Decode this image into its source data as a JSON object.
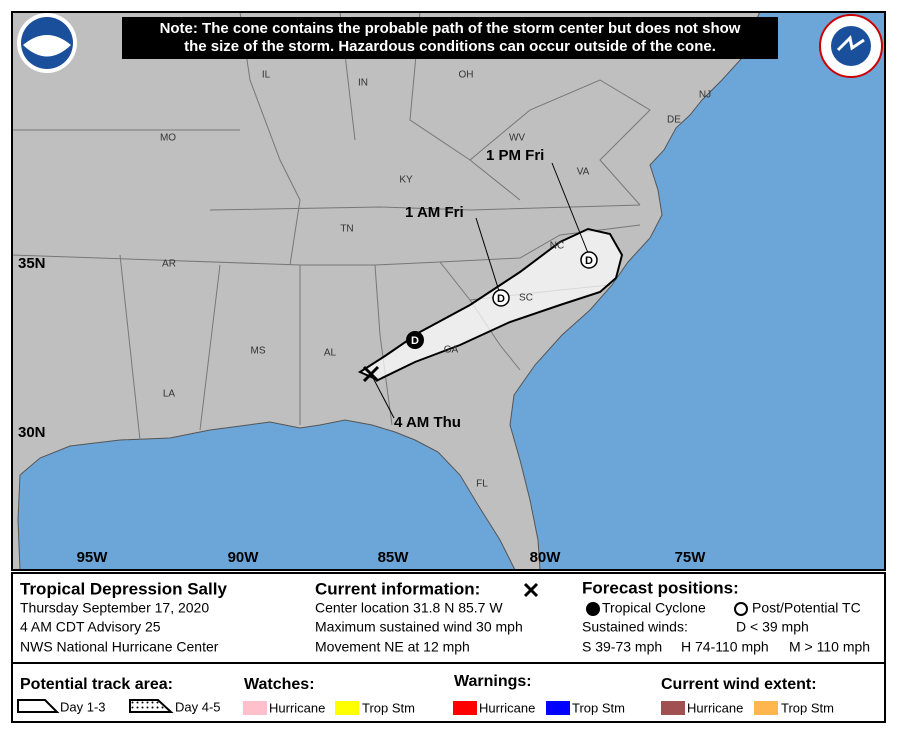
{
  "note": [
    "Note: The cone contains the probable path of the storm center but does not show",
    "the size of the storm. Hazardous conditions can occur outside of the cone."
  ],
  "map": {
    "states": [
      "IL",
      "IN",
      "OH",
      "NJ",
      "MO",
      "WV",
      "DE",
      "KY",
      "VA",
      "TN",
      "NC",
      "AR",
      "SC",
      "MS",
      "AL",
      "GA",
      "LA",
      "FL"
    ],
    "latitudes": [
      "35N",
      "30N"
    ],
    "longitudes": [
      "95W",
      "90W",
      "85W",
      "80W",
      "75W"
    ],
    "markers": [
      "D",
      "D",
      "D"
    ],
    "time_labels": [
      "4 AM Thu",
      "1 AM Fri",
      "1 PM Fri"
    ]
  },
  "legend": {
    "storm": {
      "title": "Tropical Depression Sally",
      "lines": [
        "Thursday September 17, 2020",
        "4 AM CDT Advisory 25",
        "NWS National Hurricane Center"
      ]
    },
    "current": {
      "title": "Current information:",
      "lines": [
        "Center location 31.8 N 85.7 W",
        "Maximum sustained wind 30 mph",
        "Movement NE at 12 mph"
      ]
    },
    "forecast": {
      "title": "Forecast positions:",
      "tropical_cyclone": "Tropical Cyclone",
      "post_tc": "Post/Potential TC",
      "sustained_winds": "Sustained winds:",
      "d": "D < 39 mph",
      "s": "S 39-73 mph",
      "h": "H 74-110 mph",
      "m": "M > 110 mph"
    },
    "track": {
      "title": "Potential track area:",
      "day13": "Day 1-3",
      "day45": "Day 4-5"
    },
    "watches": {
      "title": "Watches:",
      "hurricane": "Hurricane",
      "trop_stm": "Trop Stm"
    },
    "warnings": {
      "title": "Warnings:",
      "hurricane": "Hurricane",
      "trop_stm": "Trop Stm"
    },
    "wind": {
      "title": "Current wind extent:",
      "hurricane": "Hurricane",
      "trop_stm": "Trop Stm"
    }
  }
}
